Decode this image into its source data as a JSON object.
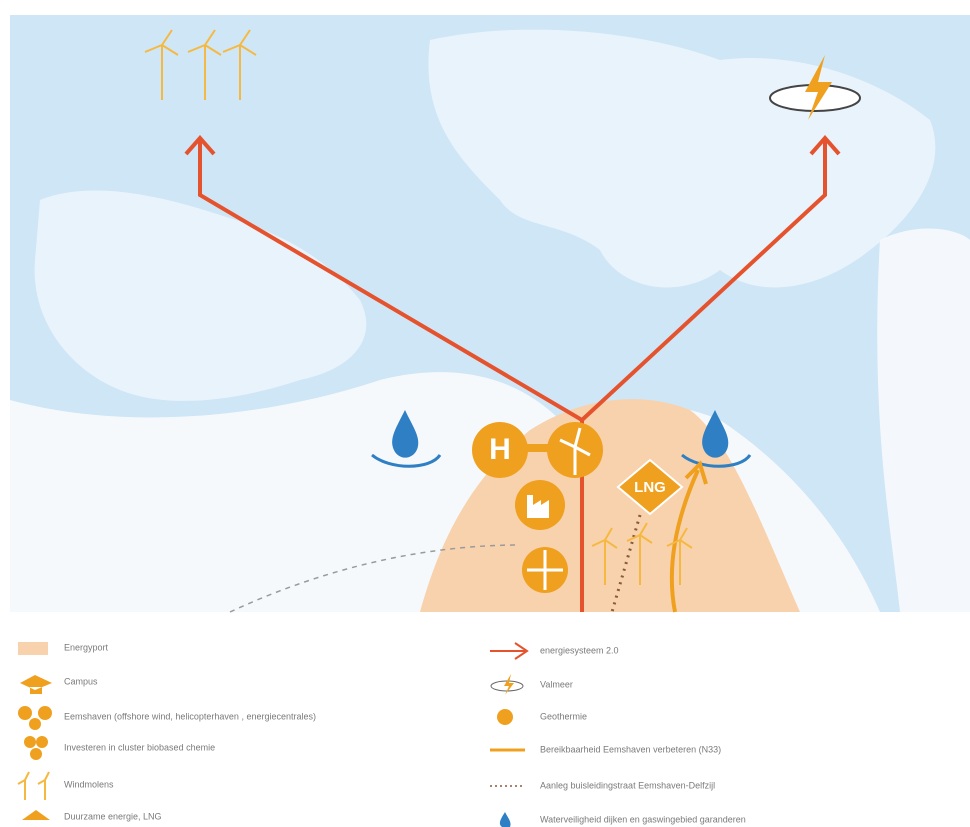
{
  "map": {
    "labels": [
      "H",
      "LNG"
    ]
  },
  "legend": {
    "left": [
      "Energyport",
      "Campus",
      "Eemshaven (offshore wind, helicopterhaven , energiecentrales)",
      "Investeren in cluster biobased chemie",
      "Windmolens",
      "Duurzame energie, LNG"
    ],
    "right": [
      "energiesysteem 2.0",
      "Valmeer",
      "Geothermie",
      "Bereikbaarheid Eemshaven verbeteren (N33)",
      "Aanleg buisleidingstraat Eemshaven-Delfzijl",
      "Waterveiligheid dijken en gaswingebied garanderen"
    ]
  }
}
